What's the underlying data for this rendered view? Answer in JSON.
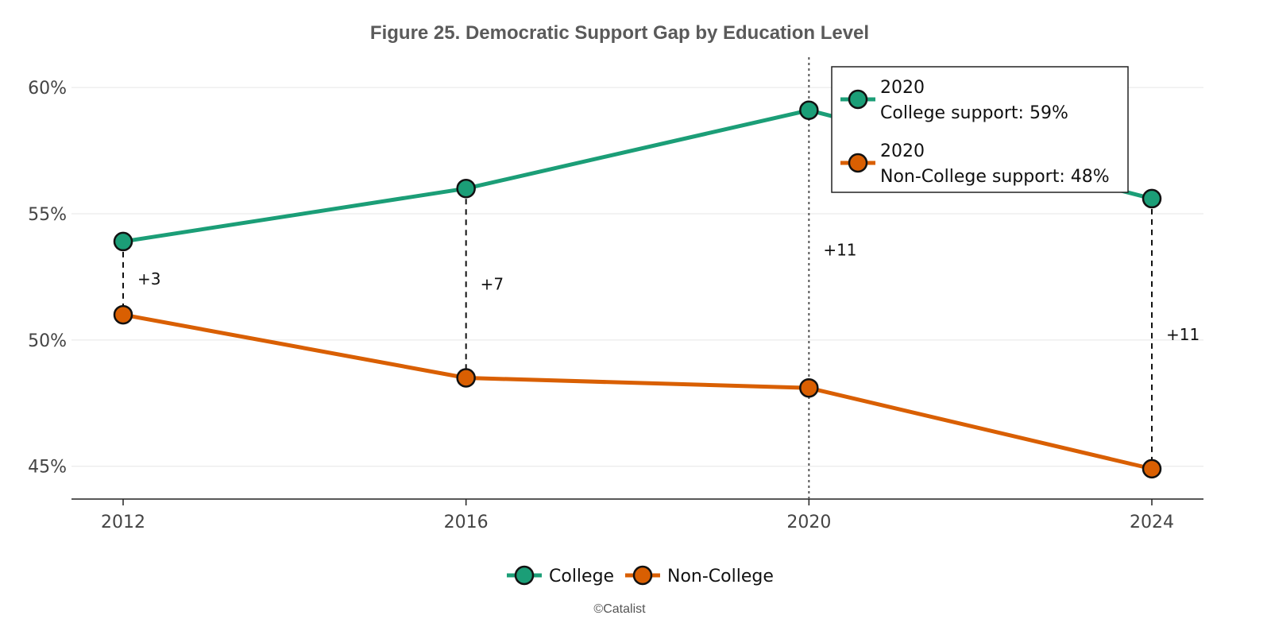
{
  "chart_data": {
    "type": "line",
    "title": "Figure 25. Democratic Support Gap by Education Level",
    "xlabel": "",
    "ylabel": "",
    "x": [
      2012,
      2016,
      2020,
      2024
    ],
    "x_tick_labels": [
      "2012",
      "2016",
      "2020",
      "2024"
    ],
    "ylim": [
      43.7,
      61.2
    ],
    "y_ticks": [
      45,
      50,
      55,
      60
    ],
    "y_tick_labels": [
      "45%",
      "50%",
      "55%",
      "60%"
    ],
    "grid": "horizontal",
    "series": [
      {
        "name": "College",
        "color": "#1b9e77",
        "values": [
          53.9,
          56.0,
          59.1,
          55.6
        ]
      },
      {
        "name": "Non-College",
        "color": "#d95f02",
        "values": [
          51.0,
          48.5,
          48.1,
          44.9
        ]
      }
    ],
    "gap_labels": [
      "+3",
      "+7",
      "+11",
      "+11"
    ],
    "hover_x": 2020,
    "tooltip": {
      "college_header": "2020",
      "college_text": "College support: 59%",
      "noncollege_header": "2020",
      "noncollege_text": "Non-College support: 48%"
    },
    "legend": {
      "placement": "bottom-center",
      "items": [
        "College",
        "Non-College"
      ]
    },
    "credit": "©Catalist"
  }
}
